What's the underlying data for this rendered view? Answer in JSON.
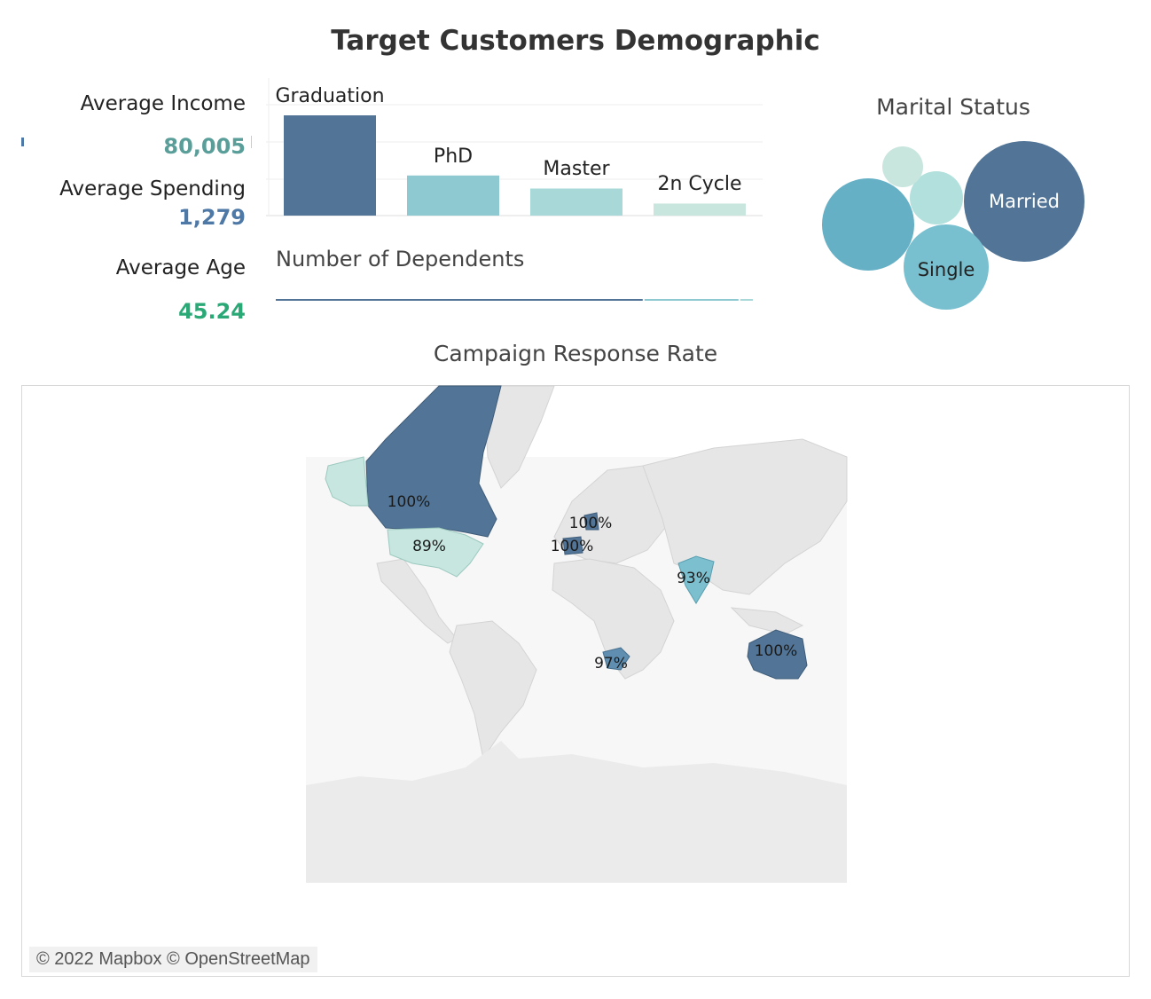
{
  "dashboard": {
    "title": "Target Customers Demographic"
  },
  "kpis": {
    "income": {
      "label": "Average Income",
      "value": "80,005",
      "color": "#5a9e9a"
    },
    "spending": {
      "label": "Average Spending",
      "value": "1,279",
      "color": "#4e79a7"
    },
    "age": {
      "label": "Average Age",
      "value": "45.24",
      "color": "#2aa876"
    }
  },
  "education": {
    "categories": [
      "Graduation",
      "PhD",
      "Master",
      "2n Cycle"
    ],
    "values": [
      100,
      40,
      27,
      12
    ],
    "colors": [
      "#527597",
      "#8ec8d0",
      "#a8d8d8",
      "#c8e6de"
    ]
  },
  "dependents": {
    "title": "Number of Dependents",
    "segments": [
      {
        "share": 0.77,
        "color": "#527597"
      },
      {
        "share": 0.2,
        "color": "#8ec8d0"
      },
      {
        "share": 0.03,
        "color": "#a8d8d8"
      }
    ]
  },
  "marital": {
    "title": "Marital Status",
    "bubbles": [
      {
        "label": "Married",
        "color": "#527597"
      },
      {
        "label": "Single",
        "color": "#78c0cf"
      },
      {
        "label": "",
        "color": "#66b0c6"
      },
      {
        "label": "",
        "color": "#b2e0dc"
      },
      {
        "label": "",
        "color": "#c8e6de"
      }
    ]
  },
  "map": {
    "title": "Campaign Response Rate",
    "attribution": "© 2022 Mapbox © OpenStreetMap",
    "countries": [
      {
        "name": "Canada",
        "rate": "100%",
        "color": "#527597"
      },
      {
        "name": "USA",
        "rate": "89%",
        "color": "#c6e6df"
      },
      {
        "name": "Germany",
        "rate": "100%",
        "color": "#527597"
      },
      {
        "name": "Spain",
        "rate": "100%",
        "color": "#527597"
      },
      {
        "name": "India",
        "rate": "93%",
        "color": "#7cbfcf"
      },
      {
        "name": "South Africa",
        "rate": "97%",
        "color": "#5f8eb0"
      },
      {
        "name": "Australia",
        "rate": "100%",
        "color": "#527597"
      }
    ]
  }
}
